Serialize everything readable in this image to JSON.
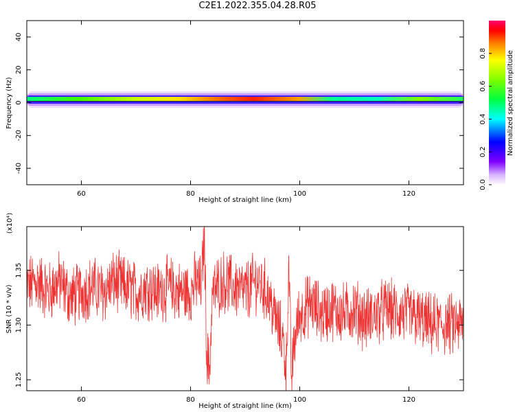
{
  "title": "C2E1.2022.355.04.28.R05",
  "colors": {
    "snr_line": "#ee3333",
    "background": "#ffffff",
    "axis": "#000000"
  },
  "chart_data": [
    {
      "type": "heatmap",
      "xlabel": "Height of straight line (km)",
      "ylabel": "Frequency (Hz)",
      "xlim": [
        50,
        130
      ],
      "ylim": [
        -50,
        50
      ],
      "x_ticks": [
        60,
        80,
        100,
        120
      ],
      "y_ticks": [
        -40,
        -20,
        0,
        20,
        40
      ],
      "colorbar": {
        "label": "Normalized spectral amplitude",
        "range": [
          0.0,
          1.0
        ],
        "ticks": [
          0.0,
          0.2,
          0.4,
          0.6,
          0.8
        ],
        "tick_labels": [
          "0.0",
          "0.2",
          "0.4",
          "0.6",
          "0.8"
        ]
      },
      "band_center_frequency_hz": 1.5,
      "peak_amplitude_by_height": {
        "x": [
          50,
          55,
          60,
          65,
          70,
          75,
          80,
          85,
          90,
          95,
          100,
          105,
          110,
          115,
          120,
          125,
          130
        ],
        "amplitude": [
          0.55,
          0.6,
          0.7,
          0.72,
          0.75,
          0.8,
          0.9,
          0.95,
          1.0,
          0.97,
          0.8,
          0.55,
          0.5,
          0.55,
          0.62,
          0.6,
          0.5
        ]
      },
      "grid": false
    },
    {
      "type": "line",
      "xlabel": "Height of straight line (km)",
      "ylabel": "SNR (10 * v/v)",
      "y_multiplier": "(x10⁴)",
      "xlim": [
        50,
        130
      ],
      "ylim": [
        1.24,
        1.39
      ],
      "x_ticks": [
        60,
        80,
        100,
        120
      ],
      "y_ticks": [
        1.25,
        1.3,
        1.35
      ],
      "y_tick_labels": [
        "1.25",
        "1.30",
        "1.35"
      ],
      "series": [
        {
          "x": [
            50,
            52,
            54,
            56,
            58,
            60,
            62,
            64,
            66,
            68,
            70,
            72,
            74,
            76,
            78,
            80,
            81,
            82,
            82.5,
            83,
            83.5,
            84,
            86,
            88,
            90,
            92,
            94,
            95,
            96,
            97,
            97.5,
            98,
            98.5,
            99,
            99.5,
            100,
            102,
            104,
            106,
            108,
            110,
            112,
            114,
            116,
            118,
            120,
            122,
            124,
            126,
            128,
            130
          ],
          "values": [
            1.335,
            1.34,
            1.33,
            1.34,
            1.325,
            1.33,
            1.335,
            1.33,
            1.34,
            1.335,
            1.33,
            1.335,
            1.33,
            1.335,
            1.33,
            1.33,
            1.34,
            1.335,
            1.385,
            1.27,
            1.26,
            1.33,
            1.34,
            1.335,
            1.33,
            1.34,
            1.33,
            1.315,
            1.3,
            1.285,
            1.26,
            1.35,
            1.25,
            1.285,
            1.3,
            1.31,
            1.32,
            1.31,
            1.315,
            1.31,
            1.315,
            1.305,
            1.31,
            1.315,
            1.31,
            1.31,
            1.305,
            1.3,
            1.3,
            1.3,
            1.3
          ]
        }
      ],
      "grid": false
    }
  ]
}
